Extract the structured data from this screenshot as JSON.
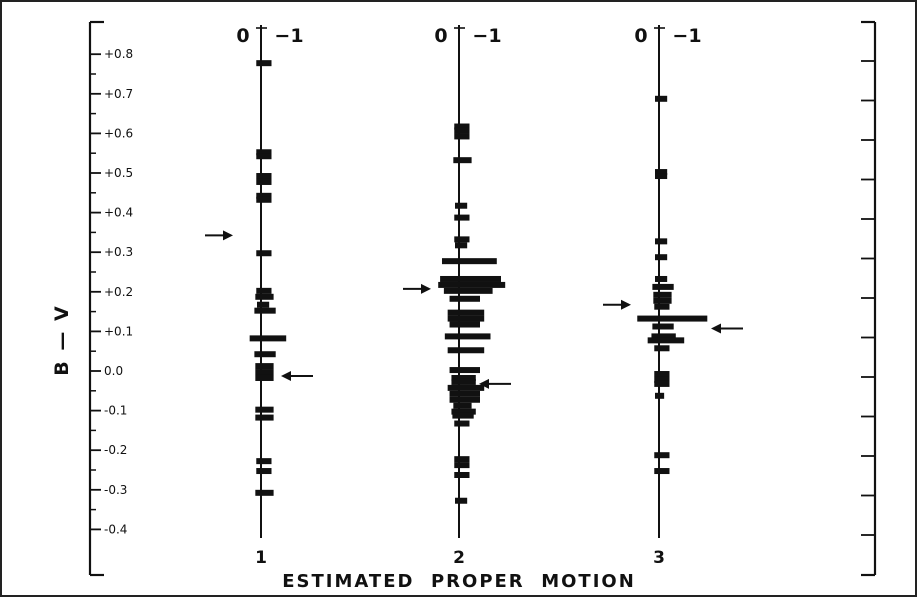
{
  "chart_data": {
    "type": "bar",
    "xlabel": "ESTIMATED  PROPER  MOTION",
    "ylabel": "B — V",
    "ylim": [
      -0.5,
      0.85
    ],
    "yticks": [
      "+0.8",
      "+0.7",
      "+0.6",
      "+0.5",
      "+0.4",
      "+0.3",
      "+0.2",
      "+0.1",
      "0.0",
      "-0.1",
      "-0.2",
      "-0.3",
      "-0.4"
    ],
    "column_head_left": "0",
    "column_head_right": "−1",
    "columns": [
      {
        "label": "1",
        "marks": [
          {
            "bv": 0.79,
            "pm": -0.05
          },
          {
            "bv": 0.565,
            "pm": -0.05
          },
          {
            "bv": 0.555,
            "pm": -0.05
          },
          {
            "bv": 0.505,
            "pm": -0.05
          },
          {
            "bv": 0.49,
            "pm": -0.05
          },
          {
            "bv": 0.455,
            "pm": -0.05
          },
          {
            "bv": 0.445,
            "pm": -0.05
          },
          {
            "bv": 0.31,
            "pm": -0.05
          },
          {
            "bv": 0.215,
            "pm": -0.05
          },
          {
            "bv": 0.2,
            "pm": -0.06
          },
          {
            "bv": 0.18,
            "pm": -0.04
          },
          {
            "bv": 0.165,
            "pm": -0.07
          },
          {
            "bv": 0.095,
            "pm": -0.12
          },
          {
            "bv": 0.055,
            "pm": -0.07
          },
          {
            "bv": 0.025,
            "pm": -0.06
          },
          {
            "bv": 0.01,
            "pm": -0.06
          },
          {
            "bv": -0.005,
            "pm": -0.06
          },
          {
            "bv": -0.085,
            "pm": -0.06
          },
          {
            "bv": -0.105,
            "pm": -0.06
          },
          {
            "bv": -0.215,
            "pm": -0.05
          },
          {
            "bv": -0.24,
            "pm": -0.05
          },
          {
            "bv": -0.295,
            "pm": -0.06
          }
        ],
        "arrows": [
          {
            "bv": 0.355,
            "side": "left"
          },
          {
            "bv": 0.0,
            "side": "right"
          }
        ]
      },
      {
        "label": "2",
        "marks": [
          {
            "bv": 0.63,
            "pm": -0.05
          },
          {
            "bv": 0.62,
            "pm": -0.05
          },
          {
            "bv": 0.605,
            "pm": -0.05
          },
          {
            "bv": 0.545,
            "pm": -0.06
          },
          {
            "bv": 0.43,
            "pm": -0.04
          },
          {
            "bv": 0.4,
            "pm": -0.05
          },
          {
            "bv": 0.345,
            "pm": -0.05
          },
          {
            "bv": 0.33,
            "pm": -0.04
          },
          {
            "bv": 0.29,
            "pm": -0.18
          },
          {
            "bv": 0.245,
            "pm": -0.2
          },
          {
            "bv": 0.23,
            "pm": -0.22
          },
          {
            "bv": 0.215,
            "pm": -0.16
          },
          {
            "bv": 0.195,
            "pm": -0.1
          },
          {
            "bv": 0.16,
            "pm": -0.12
          },
          {
            "bv": 0.145,
            "pm": -0.12
          },
          {
            "bv": 0.13,
            "pm": -0.1
          },
          {
            "bv": 0.1,
            "pm": -0.15
          },
          {
            "bv": 0.065,
            "pm": -0.12
          },
          {
            "bv": 0.015,
            "pm": -0.1
          },
          {
            "bv": -0.005,
            "pm": -0.08
          },
          {
            "bv": -0.015,
            "pm": -0.08
          },
          {
            "bv": -0.03,
            "pm": -0.12
          },
          {
            "bv": -0.045,
            "pm": -0.1
          },
          {
            "bv": -0.06,
            "pm": -0.1
          },
          {
            "bv": -0.075,
            "pm": -0.06
          },
          {
            "bv": -0.09,
            "pm": -0.08
          },
          {
            "bv": -0.1,
            "pm": -0.07
          },
          {
            "bv": -0.12,
            "pm": -0.05
          },
          {
            "bv": -0.21,
            "pm": -0.05
          },
          {
            "bv": -0.225,
            "pm": -0.05
          },
          {
            "bv": -0.25,
            "pm": -0.05
          },
          {
            "bv": -0.315,
            "pm": -0.04
          }
        ],
        "arrows": [
          {
            "bv": 0.22,
            "side": "left"
          },
          {
            "bv": -0.02,
            "side": "right"
          }
        ]
      },
      {
        "label": "3",
        "marks": [
          {
            "bv": 0.7,
            "pm": -0.04
          },
          {
            "bv": 0.515,
            "pm": -0.04
          },
          {
            "bv": 0.505,
            "pm": -0.04
          },
          {
            "bv": 0.34,
            "pm": -0.04
          },
          {
            "bv": 0.3,
            "pm": -0.04
          },
          {
            "bv": 0.245,
            "pm": -0.04
          },
          {
            "bv": 0.225,
            "pm": -0.07
          },
          {
            "bv": 0.205,
            "pm": -0.06
          },
          {
            "bv": 0.19,
            "pm": -0.06
          },
          {
            "bv": 0.175,
            "pm": -0.05
          },
          {
            "bv": 0.145,
            "pm": -0.23
          },
          {
            "bv": 0.125,
            "pm": -0.07
          },
          {
            "bv": 0.1,
            "pm": -0.08
          },
          {
            "bv": 0.09,
            "pm": -0.12
          },
          {
            "bv": 0.07,
            "pm": -0.05
          },
          {
            "bv": 0.005,
            "pm": -0.05
          },
          {
            "bv": -0.01,
            "pm": -0.05
          },
          {
            "bv": -0.02,
            "pm": -0.05
          },
          {
            "bv": -0.05,
            "pm": -0.03
          },
          {
            "bv": -0.2,
            "pm": -0.05
          },
          {
            "bv": -0.24,
            "pm": -0.05
          }
        ],
        "arrows": [
          {
            "bv": 0.18,
            "side": "left"
          },
          {
            "bv": 0.12,
            "side": "right"
          }
        ]
      }
    ]
  }
}
